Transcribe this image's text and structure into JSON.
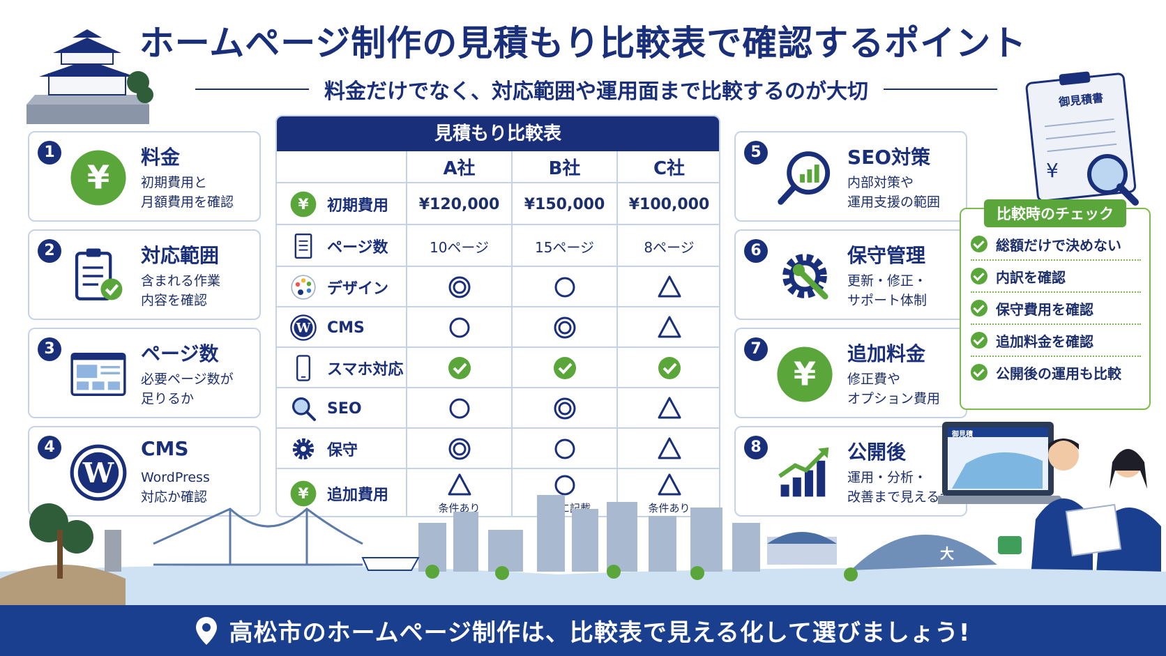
{
  "title": "ホームページ制作の見積もり比較表で確認するポイント",
  "subtitle": "料金だけでなく、対応範囲や運用面まで比較するのが大切",
  "left_cards": [
    {
      "num": "1",
      "title": "料金",
      "desc": "初期費用と\n月額費用を確認",
      "icon": "yen-icon"
    },
    {
      "num": "2",
      "title": "対応範囲",
      "desc": "含まれる作業\n内容を確認",
      "icon": "clipboard-check-icon"
    },
    {
      "num": "3",
      "title": "ページ数",
      "desc": "必要ページ数が\n足りるか",
      "icon": "webpage-layout-icon"
    },
    {
      "num": "4",
      "title": "CMS",
      "desc": "WordPress\n対応か確認",
      "icon": "wordpress-icon"
    }
  ],
  "right_cards": [
    {
      "num": "5",
      "title": "SEO対策",
      "desc": "内部対策や\n運用支援の範囲",
      "icon": "magnifier-chart-icon"
    },
    {
      "num": "6",
      "title": "保守管理",
      "desc": "更新・修正・\nサポート体制",
      "icon": "gear-wrench-icon"
    },
    {
      "num": "7",
      "title": "追加料金",
      "desc": "修正費や\nオプション費用",
      "icon": "yen-icon"
    },
    {
      "num": "8",
      "title": "公開後",
      "desc": "運用・分析・\n改善まで見えるか",
      "icon": "growth-chart-icon"
    }
  ],
  "table": {
    "title": "見積もり比較表",
    "companies": [
      "A社",
      "B社",
      "C社"
    ],
    "rows": [
      {
        "label": "初期費用",
        "icon": "yen-icon",
        "type": "text",
        "values": [
          "¥120,000",
          "¥150,000",
          "¥100,000"
        ]
      },
      {
        "label": "ページ数",
        "icon": "document-icon",
        "type": "pages",
        "values": [
          "10ページ",
          "15ページ",
          "8ページ"
        ]
      },
      {
        "label": "デザイン",
        "icon": "palette-icon",
        "type": "mark",
        "values": [
          "double-circle",
          "circle",
          "triangle"
        ]
      },
      {
        "label": "CMS",
        "icon": "wordpress-icon",
        "type": "mark",
        "values": [
          "circle",
          "double-circle",
          "triangle"
        ]
      },
      {
        "label": "スマホ対応",
        "icon": "smartphone-icon",
        "type": "mark",
        "values": [
          "check",
          "check",
          "check"
        ]
      },
      {
        "label": "SEO",
        "icon": "magnifier-icon",
        "type": "mark",
        "values": [
          "circle",
          "double-circle",
          "triangle"
        ]
      },
      {
        "label": "保守",
        "icon": "gear-icon",
        "type": "mark",
        "values": [
          "double-circle",
          "circle",
          "triangle"
        ]
      },
      {
        "label": "追加費用",
        "icon": "yen-icon",
        "type": "mark",
        "values": [
          "triangle",
          "circle",
          "triangle"
        ],
        "notes": [
          "条件あり",
          "明確に記載",
          "条件あり"
        ]
      }
    ]
  },
  "checklist": {
    "title": "比較時のチェック",
    "items": [
      "総額だけで決めない",
      "内訳を確認",
      "保守費用を確認",
      "追加料金を確認",
      "公開後の運用も比較"
    ]
  },
  "estimate_doc": {
    "title": "御見積書",
    "yen": "¥"
  },
  "laptop_label": "御見積",
  "mountain_label": "大",
  "footer": "高松市のホームページ制作は、比較表で見える化して選びましょう!",
  "colors": {
    "navy": "#1a2f7a",
    "green": "#5aa63a",
    "border": "#c5d3ea",
    "footer": "#1a3f8f"
  }
}
